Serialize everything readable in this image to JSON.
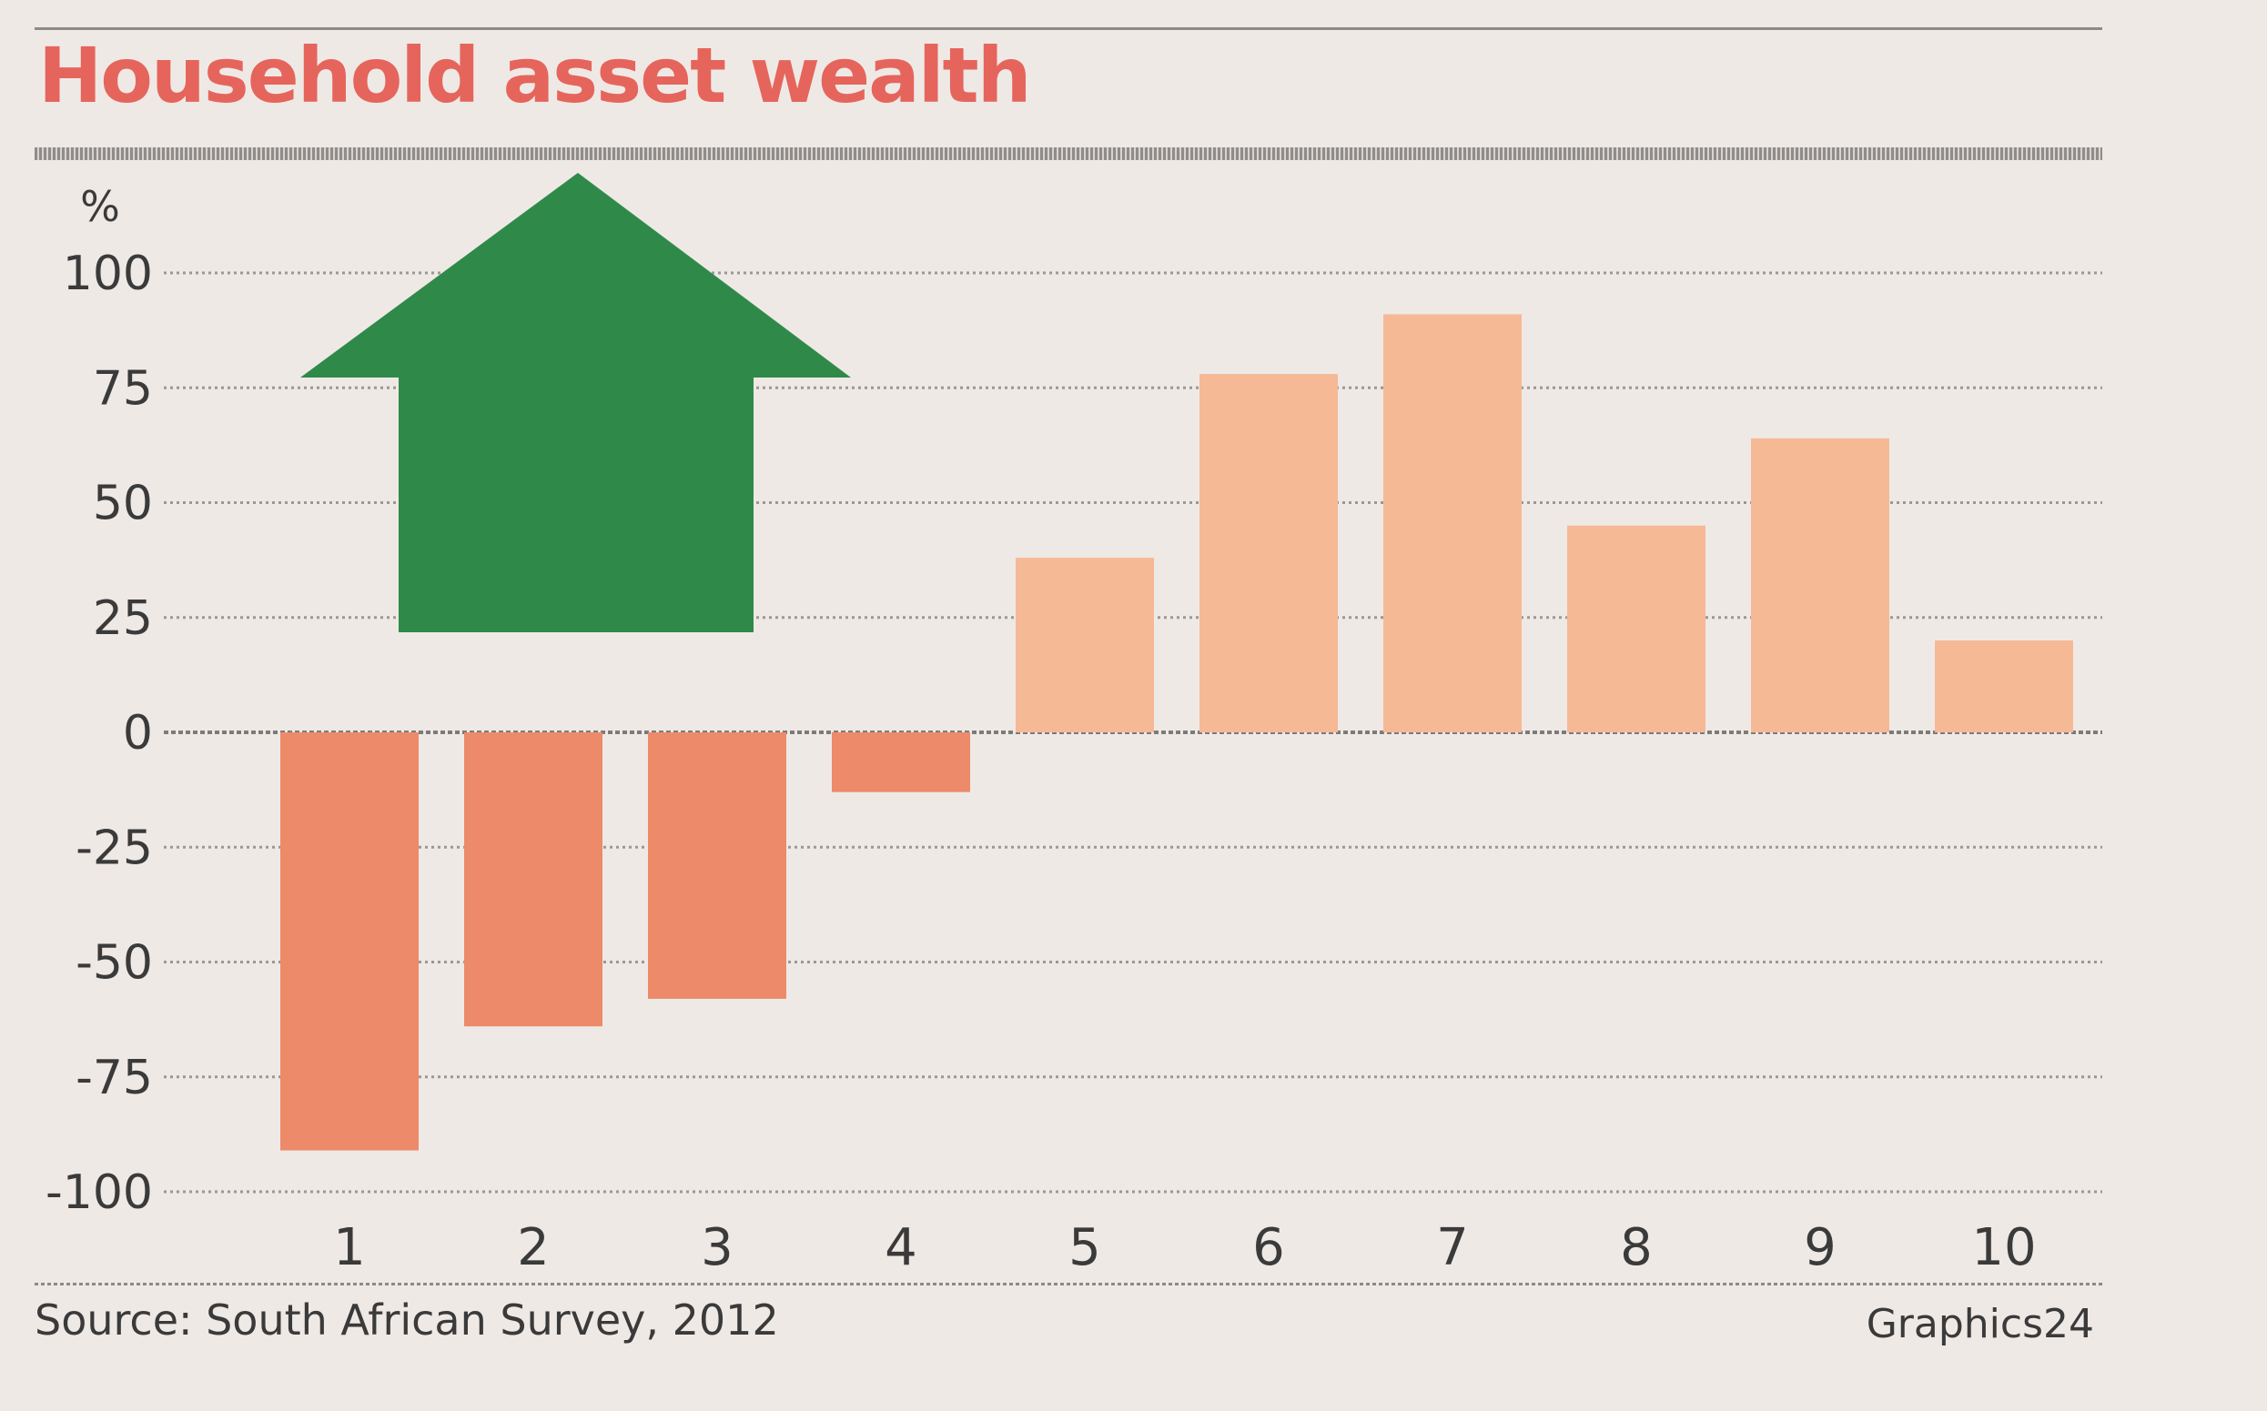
{
  "title": "Household asset wealth",
  "source": "Source: South African Survey, 2012",
  "credit": "Graphics24",
  "chart_data": {
    "type": "bar",
    "title": "Household asset wealth",
    "ylabel": "%",
    "ylim": [
      -100,
      100
    ],
    "yticks": [
      100,
      75,
      50,
      25,
      0,
      -25,
      -50,
      -75,
      -100
    ],
    "categories": [
      "1",
      "2",
      "3",
      "4",
      "5",
      "6",
      "7",
      "8",
      "9",
      "10"
    ],
    "values": [
      -91,
      -64,
      -58,
      -13,
      38,
      78,
      91,
      45,
      64,
      20
    ],
    "grid": true,
    "legend": "none",
    "colors": {
      "negative": "#ec8a6a",
      "positive": "#f6b996",
      "arrow": "#2f8a4a",
      "title": "#e5655c"
    },
    "decoration": "green-up-arrow-icon"
  }
}
